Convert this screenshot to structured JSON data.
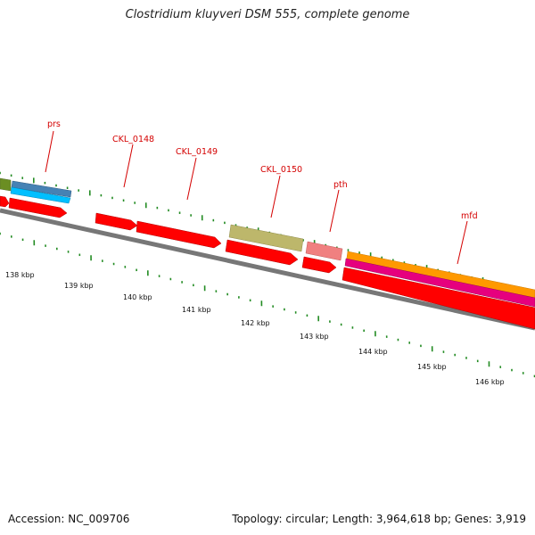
{
  "title": "Clostridium kluyveri DSM 555, complete genome",
  "footer": {
    "accession": "Accession: NC_009706",
    "topology": "Topology: circular; Length: 3,964,618 bp; Genes: 3,919"
  },
  "gene_labels": [
    "prs",
    "CKL_0148",
    "CKL_0149",
    "CKL_0150",
    "pth",
    "mfd"
  ],
  "scale_labels": [
    "138 kbp",
    "139 kbp",
    "140 kbp",
    "141 kbp",
    "142 kbp",
    "143 kbp",
    "144 kbp",
    "145 kbp",
    "146 kbp"
  ],
  "colors": {
    "cds": "#ff0000",
    "gene_olive": "#bdb76b",
    "gene_salmon": "#f08080",
    "gene_orange": "#ff9900",
    "gene_magenta": "#e6007e",
    "gene_steelblue": "#4682b4",
    "gene_skyblue": "#00bfff",
    "gene_green": "#6b8e23",
    "backbone": "#808080",
    "ticks": "#228b22",
    "label_line": "#d40000"
  }
}
